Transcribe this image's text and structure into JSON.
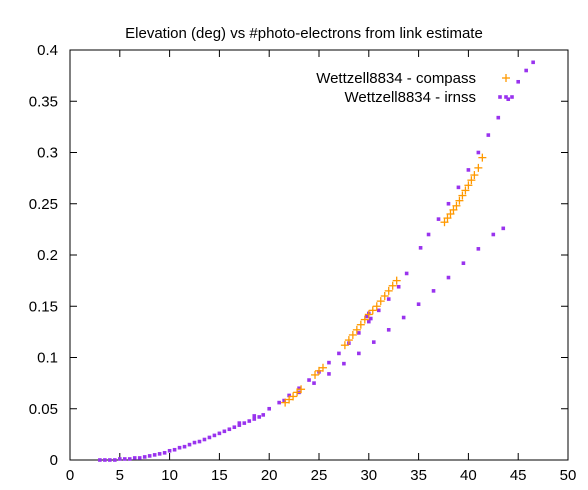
{
  "chart_data": {
    "type": "scatter",
    "title": "Elevation (deg) vs #photo-electrons from link estimate",
    "xlabel": "",
    "ylabel": "",
    "xlim": [
      0,
      50
    ],
    "ylim": [
      0,
      0.4
    ],
    "x_ticks": [
      "0",
      "5",
      "10",
      "15",
      "20",
      "25",
      "30",
      "35",
      "40",
      "45",
      "50"
    ],
    "y_ticks": [
      "0",
      "0.05",
      "0.1",
      "0.15",
      "0.2",
      "0.25",
      "0.3",
      "0.35",
      "0.4"
    ],
    "grid": false,
    "legend_position": "top-right",
    "series": [
      {
        "name": "Wettzell8834 - compass",
        "marker": "plus",
        "color": "#ff9900",
        "x": [
          21.6,
          22.0,
          22.4,
          22.8,
          23.2,
          24.6,
          25.0,
          25.4,
          27.6,
          28.0,
          28.4,
          28.8,
          29.2,
          29.6,
          30.0,
          30.4,
          30.8,
          31.2,
          31.6,
          32.0,
          32.4,
          32.8,
          37.6,
          37.9,
          38.2,
          38.5,
          38.8,
          39.1,
          39.4,
          39.7,
          40.0,
          40.3,
          40.6,
          41.0,
          41.4
        ],
        "y": [
          0.056,
          0.059,
          0.062,
          0.066,
          0.069,
          0.083,
          0.087,
          0.09,
          0.112,
          0.117,
          0.122,
          0.127,
          0.132,
          0.137,
          0.142,
          0.146,
          0.15,
          0.155,
          0.16,
          0.165,
          0.17,
          0.175,
          0.232,
          0.236,
          0.24,
          0.244,
          0.248,
          0.253,
          0.258,
          0.263,
          0.268,
          0.273,
          0.278,
          0.285,
          0.295
        ]
      },
      {
        "name": "Wettzell8834 - irnss",
        "marker": "dot",
        "color": "#9933ee",
        "x": [
          3.0,
          3.5,
          4.0,
          4.5,
          5.0,
          5.5,
          6.0,
          6.5,
          7.0,
          7.5,
          8.0,
          8.5,
          9.0,
          9.5,
          10.0,
          10.5,
          11.0,
          11.5,
          12.0,
          12.5,
          13.0,
          13.5,
          14.0,
          14.5,
          15.0,
          15.5,
          16.0,
          16.5,
          17.0,
          17.5,
          18.0,
          18.5,
          19.0,
          19.4,
          21.0,
          22.0,
          23.0,
          24.0,
          25.0,
          26.0,
          27.0,
          28.0,
          29.0,
          30.0,
          31.0,
          32.0,
          33.0,
          33.8,
          35.2,
          36.0,
          37.0,
          38.0,
          39.0,
          40.0,
          41.0,
          42.0,
          43.0,
          44.0,
          45.0,
          45.8,
          46.5,
          17.0,
          18.5,
          20.0,
          21.5,
          23.0,
          24.5,
          26.0,
          27.5,
          29.0,
          30.5,
          32.0,
          33.5,
          35.0,
          36.5,
          38.0,
          39.5,
          41.0,
          42.5,
          43.5,
          30.0,
          29.8,
          30.2
        ],
        "y": [
          0.0,
          0.0,
          0.0,
          0.0,
          0.001,
          0.001,
          0.001,
          0.002,
          0.002,
          0.003,
          0.004,
          0.005,
          0.006,
          0.007,
          0.009,
          0.01,
          0.012,
          0.013,
          0.015,
          0.017,
          0.018,
          0.02,
          0.022,
          0.024,
          0.026,
          0.028,
          0.03,
          0.032,
          0.034,
          0.036,
          0.038,
          0.04,
          0.042,
          0.044,
          0.056,
          0.063,
          0.07,
          0.078,
          0.086,
          0.095,
          0.104,
          0.114,
          0.124,
          0.135,
          0.146,
          0.157,
          0.169,
          0.182,
          0.207,
          0.22,
          0.235,
          0.25,
          0.266,
          0.283,
          0.3,
          0.317,
          0.334,
          0.352,
          0.369,
          0.38,
          0.388,
          0.036,
          0.043,
          0.05,
          0.058,
          0.066,
          0.075,
          0.084,
          0.094,
          0.104,
          0.115,
          0.127,
          0.139,
          0.152,
          0.165,
          0.178,
          0.192,
          0.206,
          0.22,
          0.226,
          0.143,
          0.14,
          0.138
        ]
      }
    ]
  }
}
